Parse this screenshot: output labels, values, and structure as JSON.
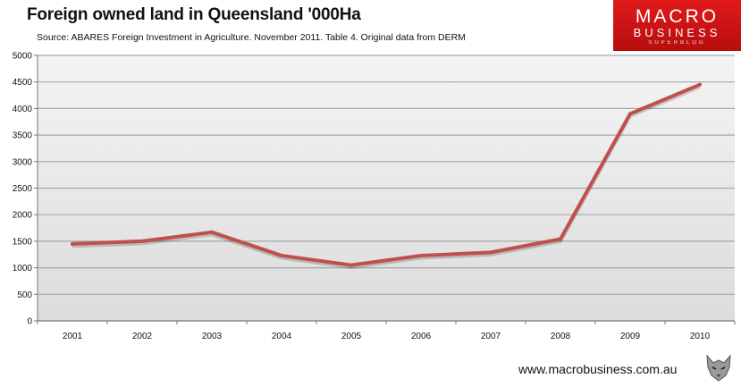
{
  "header": {
    "title": "Foreign owned land in Queensland '000Ha",
    "subtitle": "Source: ABARES Foreign Investment in Agriculture. November 2011. Table 4.  Original data from DERM"
  },
  "brand": {
    "line1": "MACRO",
    "line2": "BUSINESS",
    "line3": "SUPERBLOG"
  },
  "footer": {
    "url": "www.macrobusiness.com.au",
    "logo_icon": "wolf-head-icon"
  },
  "colors": {
    "line": "#c0504d",
    "grid": "#a6a6a6",
    "brand_red": "#d01414"
  },
  "chart_data": {
    "type": "line",
    "title": "Foreign owned land in Queensland '000Ha",
    "xlabel": "",
    "ylabel": "",
    "ylim": [
      0,
      5000
    ],
    "ytick_step": 500,
    "grid": true,
    "legend": "none",
    "categories": [
      "2001",
      "2002",
      "2003",
      "2004",
      "2005",
      "2006",
      "2007",
      "2008",
      "2009",
      "2010"
    ],
    "series": [
      {
        "name": "Foreign owned land '000Ha",
        "values": [
          1450,
          1500,
          1670,
          1230,
          1050,
          1230,
          1290,
          1540,
          3900,
          4450
        ]
      }
    ]
  }
}
